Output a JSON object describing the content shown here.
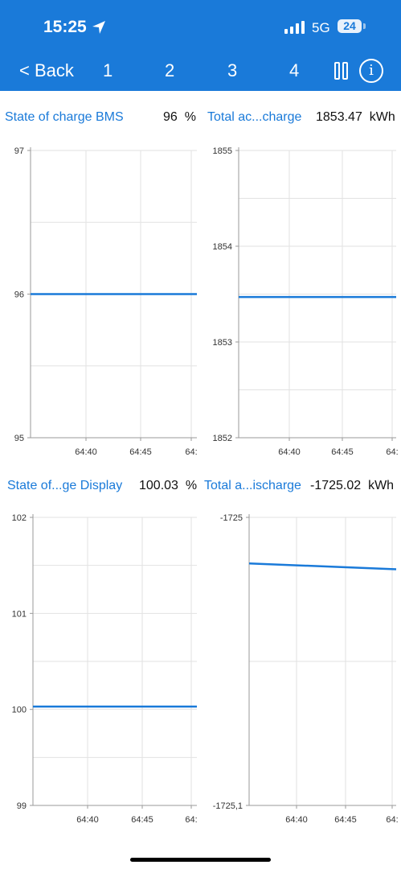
{
  "status_bar": {
    "time": "15:25",
    "network": "5G",
    "battery": "24"
  },
  "nav": {
    "back_label": "< Back",
    "tabs": [
      "1",
      "2",
      "3",
      "4"
    ]
  },
  "colors": {
    "header": "#1a7ad9",
    "series": "#1a7ad9",
    "grid": "#e2e2e2",
    "axis": "#9a9a9a"
  },
  "panels": [
    {
      "title": "State of charge BMS",
      "value": "96",
      "unit": "%"
    },
    {
      "title": "Total ac...charge",
      "value": "1853.47",
      "unit": "kWh"
    },
    {
      "title": "State of...ge Display",
      "value": "100.03",
      "unit": "%"
    },
    {
      "title": "Total a...ischarge",
      "value": "-1725.02",
      "unit": "kWh"
    }
  ],
  "chart_data": [
    {
      "type": "line",
      "ylim": [
        95,
        97
      ],
      "yticks": [
        "97",
        "96",
        "95"
      ],
      "xticks": [
        "64:40",
        "64:45",
        "64:"
      ],
      "series": [
        {
          "x": [
            "64:35",
            "64:50"
          ],
          "values": [
            96,
            96
          ]
        }
      ]
    },
    {
      "type": "line",
      "ylim": [
        1852,
        1855
      ],
      "yticks": [
        "1855",
        "1854",
        "1853",
        "1852"
      ],
      "xticks": [
        "64:40",
        "64:45",
        "64:"
      ],
      "series": [
        {
          "x": [
            "64:35",
            "64:50"
          ],
          "values": [
            1853.47,
            1853.47
          ]
        }
      ]
    },
    {
      "type": "line",
      "ylim": [
        99,
        102
      ],
      "yticks": [
        "102",
        "101",
        "100",
        "99"
      ],
      "xticks": [
        "64:40",
        "64:45",
        "64:"
      ],
      "series": [
        {
          "x": [
            "64:35",
            "64:50"
          ],
          "values": [
            100.03,
            100.03
          ]
        }
      ]
    },
    {
      "type": "line",
      "ylim": [
        -1725.1,
        -1725
      ],
      "yticks": [
        "-1725",
        "-1725,1"
      ],
      "xticks": [
        "64:40",
        "64:45",
        "64:"
      ],
      "series": [
        {
          "x": [
            "64:35",
            "64:50"
          ],
          "values": [
            -1725.016,
            -1725.018
          ]
        }
      ]
    }
  ]
}
